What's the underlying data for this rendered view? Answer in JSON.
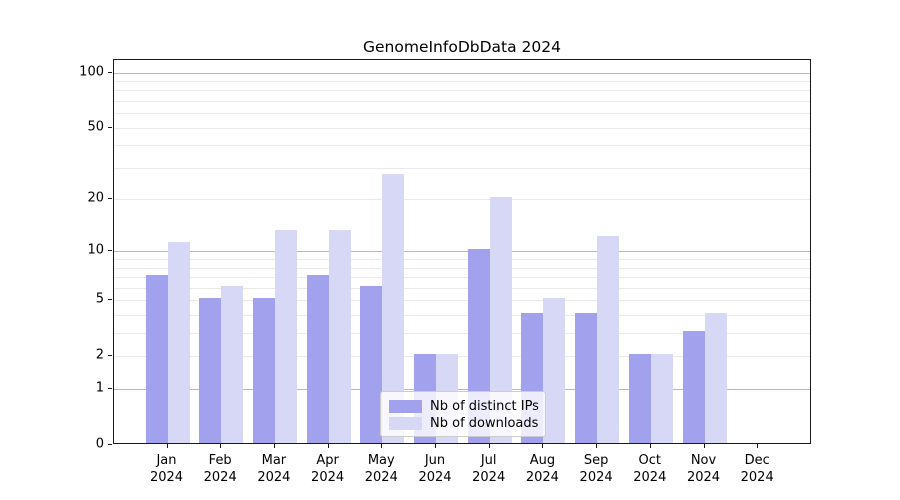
{
  "title": "GenomeInfoDbData 2024",
  "chart_data": {
    "type": "bar",
    "title": "GenomeInfoDbData 2024",
    "categories": [
      "Jan",
      "Feb",
      "Mar",
      "Apr",
      "May",
      "Jun",
      "Jul",
      "Aug",
      "Sep",
      "Oct",
      "Nov",
      "Dec"
    ],
    "year": "2024",
    "series": [
      {
        "name": "Nb of distinct IPs",
        "color": "#a1a1ee",
        "values": [
          7,
          5,
          5,
          7,
          6,
          2,
          10,
          4,
          4,
          2,
          3,
          0
        ]
      },
      {
        "name": "Nb of downloads",
        "color": "#d7d7f6",
        "values": [
          11,
          6,
          13,
          13,
          27,
          2,
          20,
          5,
          12,
          2,
          4,
          0
        ]
      }
    ],
    "yscale": "log1p",
    "ylim": [
      0,
      115
    ],
    "yticks": [
      0,
      1,
      2,
      5,
      10,
      20,
      50,
      100
    ],
    "major_gridlines": [
      1,
      10,
      100
    ],
    "minor_gridlines": [
      2,
      3,
      4,
      5,
      6,
      7,
      8,
      9,
      20,
      30,
      40,
      50,
      60,
      70,
      80,
      90
    ],
    "grid": true,
    "legend_position": "bottom-center"
  },
  "colors": {
    "bar_dark": "#a1a1ee",
    "bar_light": "#d7d7f6",
    "major_grid": "#b9b9b9",
    "minor_grid": "#e9e9e9",
    "axis": "#1a1a1a",
    "background": "#ffffff"
  }
}
